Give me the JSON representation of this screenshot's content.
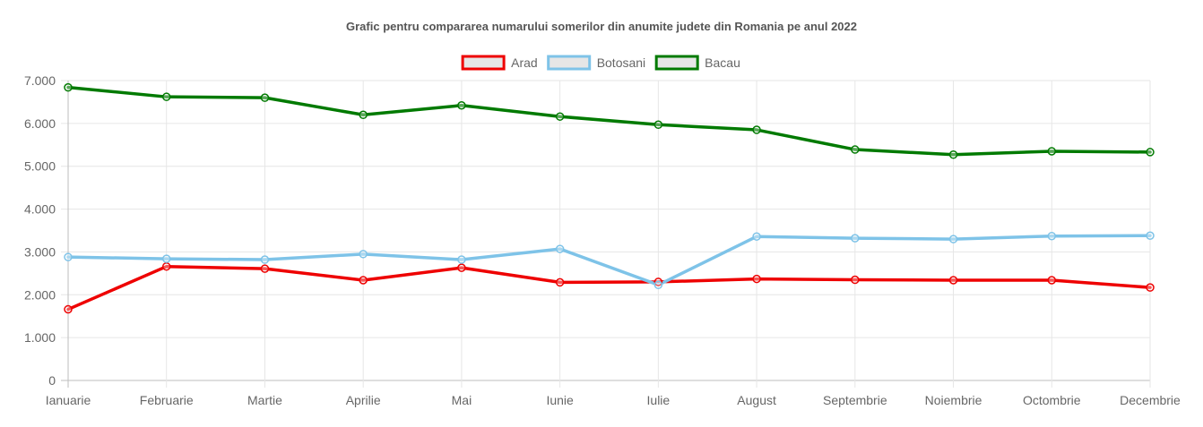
{
  "chart_data": {
    "type": "line",
    "title": "Grafic pentru compararea numarului somerilor din anumite judete din Romania pe anul 2022",
    "categories": [
      "Ianuarie",
      "Februarie",
      "Martie",
      "Aprilie",
      "Mai",
      "Iunie",
      "Iulie",
      "August",
      "Septembrie",
      "Noiembrie",
      "Octombrie",
      "Decembrie"
    ],
    "series": [
      {
        "name": "Arad",
        "color": "#ee0000",
        "values": [
          1660,
          2660,
          2610,
          2340,
          2630,
          2290,
          2300,
          2370,
          2350,
          2340,
          2340,
          2170
        ]
      },
      {
        "name": "Botosani",
        "color": "#7ec3e8",
        "values": [
          2880,
          2840,
          2820,
          2950,
          2820,
          3070,
          2230,
          3360,
          3320,
          3300,
          3370,
          3380
        ]
      },
      {
        "name": "Bacau",
        "color": "#007a00",
        "values": [
          6840,
          6620,
          6600,
          6200,
          6420,
          6160,
          5970,
          5850,
          5390,
          5270,
          5350,
          5330
        ]
      }
    ],
    "xlabel": "",
    "ylabel": "",
    "ylim": [
      0,
      7000
    ],
    "yticks": [
      "0",
      "1.000",
      "2.000",
      "3.000",
      "4.000",
      "5.000",
      "6.000",
      "7.000"
    ],
    "grid": true,
    "legend_position": "top"
  }
}
